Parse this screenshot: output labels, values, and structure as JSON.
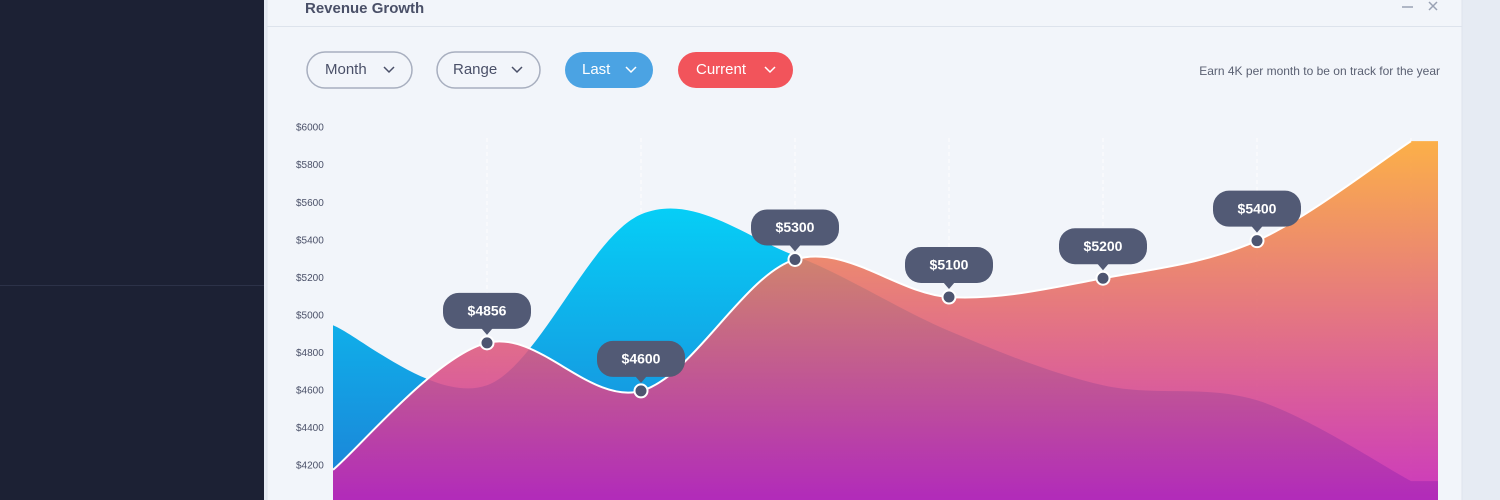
{
  "window": {
    "title": "Revenue Growth"
  },
  "filters": [
    "Month",
    "Range"
  ],
  "note": "Earn 4K per month to be on track for the year",
  "chart_data": {
    "type": "area",
    "categories": [
      null,
      null,
      null,
      null,
      null,
      null,
      null,
      null
    ],
    "series": [
      {
        "name": "Last",
        "color": "#4ba3e3",
        "colors": [
          "#00e4ff",
          "#1d7fd6"
        ],
        "values": [
          4950,
          4630,
          5540,
          5320,
          4920,
          4630,
          4550,
          4120
        ]
      },
      {
        "name": "Current",
        "color": "#f2545b",
        "colors": [
          "#ffab2b",
          "#c61fb6"
        ],
        "values": [
          4180,
          4856,
          4600,
          5300,
          5100,
          5200,
          5400,
          5930
        ],
        "value_labels": [
          null,
          "$4856",
          "$4600",
          "$5300",
          "$5100",
          "$5200",
          "$5400",
          null
        ]
      }
    ],
    "ylim": [
      4000,
      6000
    ],
    "yticks": [
      {
        "value": 4200,
        "label": "$4200"
      },
      {
        "value": 4400,
        "label": "$4400"
      },
      {
        "value": 4600,
        "label": "$4600"
      },
      {
        "value": 4800,
        "label": "$4800"
      },
      {
        "value": 5000,
        "label": "$5000"
      },
      {
        "value": 5200,
        "label": "$5200"
      },
      {
        "value": 5400,
        "label": "$5400"
      },
      {
        "value": 5600,
        "label": "$5600"
      },
      {
        "value": 5800,
        "label": "$5800"
      },
      {
        "value": 6000,
        "label": "$6000"
      }
    ],
    "grid": false
  }
}
